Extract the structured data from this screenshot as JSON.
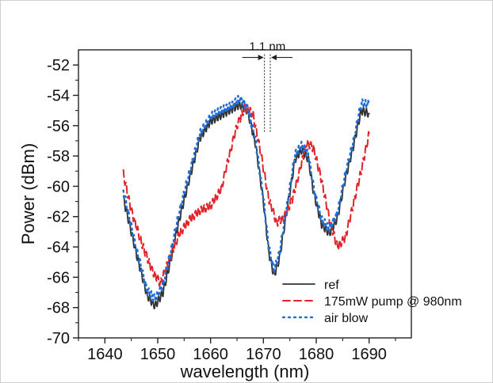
{
  "chart_data": {
    "type": "line",
    "title": "",
    "xlabel": "wavelength (nm)",
    "ylabel": "Power (dBm)",
    "xlim": [
      1635,
      1698
    ],
    "ylim": [
      -70,
      -51
    ],
    "xticks": [
      1640,
      1650,
      1660,
      1670,
      1680,
      1690
    ],
    "yticks": [
      -70,
      -68,
      -66,
      -64,
      -62,
      -60,
      -58,
      -56,
      -54,
      -52
    ],
    "grid": false,
    "legend_position": "bottom-right",
    "annotations": [
      {
        "text": "1.1 nm",
        "x1": 1670.2,
        "x2": 1671.3,
        "y_top": -51.5,
        "y_bottom": -56.5
      }
    ],
    "series": [
      {
        "name": "ref",
        "style": "solid",
        "color": "#333333",
        "points": [
          [
            1643.5,
            -60.8
          ],
          [
            1646,
            -64.5
          ],
          [
            1648,
            -67.2
          ],
          [
            1649.5,
            -67.9
          ],
          [
            1651,
            -67.0
          ],
          [
            1652.5,
            -64.8
          ],
          [
            1654,
            -62.3
          ],
          [
            1656,
            -59.5
          ],
          [
            1658,
            -56.8
          ],
          [
            1660,
            -55.7
          ],
          [
            1662,
            -55.3
          ],
          [
            1664,
            -54.9
          ],
          [
            1665.5,
            -54.6
          ],
          [
            1667,
            -55.0
          ],
          [
            1668.5,
            -57.2
          ],
          [
            1670,
            -61.0
          ],
          [
            1671,
            -64.3
          ],
          [
            1672,
            -65.9
          ],
          [
            1673,
            -64.8
          ],
          [
            1674.5,
            -61.5
          ],
          [
            1676,
            -58.2
          ],
          [
            1677.2,
            -57.6
          ],
          [
            1678.5,
            -58.2
          ],
          [
            1679.5,
            -60.4
          ],
          [
            1681,
            -62.5
          ],
          [
            1682.5,
            -63.1
          ],
          [
            1684,
            -62.1
          ],
          [
            1685.5,
            -59.5
          ],
          [
            1687,
            -57.4
          ],
          [
            1688.5,
            -55.0
          ],
          [
            1690,
            -55.2
          ]
        ]
      },
      {
        "name": "175mW pump @ 980nm",
        "style": "dashed",
        "color": "#e0242a",
        "points": [
          [
            1643.5,
            -59.2
          ],
          [
            1645,
            -61.6
          ],
          [
            1647,
            -63.8
          ],
          [
            1649,
            -65.6
          ],
          [
            1650.5,
            -66.4
          ],
          [
            1652,
            -65.0
          ],
          [
            1654,
            -63.2
          ],
          [
            1656,
            -62.2
          ],
          [
            1658,
            -61.6
          ],
          [
            1660,
            -61.3
          ],
          [
            1662,
            -60.2
          ],
          [
            1663.5,
            -58.0
          ],
          [
            1665,
            -56.0
          ],
          [
            1666.5,
            -54.8
          ],
          [
            1668,
            -55.2
          ],
          [
            1669.5,
            -57.8
          ],
          [
            1671,
            -60.8
          ],
          [
            1672.5,
            -62.4
          ],
          [
            1674,
            -62.0
          ],
          [
            1675.5,
            -60.8
          ],
          [
            1677,
            -58.8
          ],
          [
            1678.2,
            -57.1
          ],
          [
            1679.5,
            -57.5
          ],
          [
            1681,
            -59.6
          ],
          [
            1682.5,
            -62.2
          ],
          [
            1684,
            -64.0
          ],
          [
            1685.5,
            -63.4
          ],
          [
            1687,
            -61.2
          ],
          [
            1688.5,
            -59.0
          ],
          [
            1690,
            -56.5
          ]
        ]
      },
      {
        "name": "air blow",
        "style": "dotted",
        "color": "#1f6fd6",
        "points": [
          [
            1643.5,
            -60.3
          ],
          [
            1646,
            -64.2
          ],
          [
            1648,
            -66.9
          ],
          [
            1649.5,
            -67.4
          ],
          [
            1651,
            -66.5
          ],
          [
            1652.5,
            -64.3
          ],
          [
            1654,
            -61.8
          ],
          [
            1656,
            -59.1
          ],
          [
            1658,
            -56.5
          ],
          [
            1660,
            -55.4
          ],
          [
            1662,
            -55.0
          ],
          [
            1664,
            -54.7
          ],
          [
            1665.5,
            -54.2
          ],
          [
            1667,
            -54.8
          ],
          [
            1668.5,
            -57.0
          ],
          [
            1670,
            -60.8
          ],
          [
            1671,
            -64.0
          ],
          [
            1672,
            -65.5
          ],
          [
            1673,
            -64.5
          ],
          [
            1674.5,
            -61.2
          ],
          [
            1676,
            -57.9
          ],
          [
            1677.2,
            -57.3
          ],
          [
            1678.5,
            -57.9
          ],
          [
            1679.5,
            -60.1
          ],
          [
            1681,
            -62.2
          ],
          [
            1682.5,
            -62.8
          ],
          [
            1684,
            -61.8
          ],
          [
            1685.5,
            -59.2
          ],
          [
            1687,
            -57.1
          ],
          [
            1688.5,
            -54.5
          ],
          [
            1690,
            -54.6
          ]
        ]
      }
    ]
  }
}
